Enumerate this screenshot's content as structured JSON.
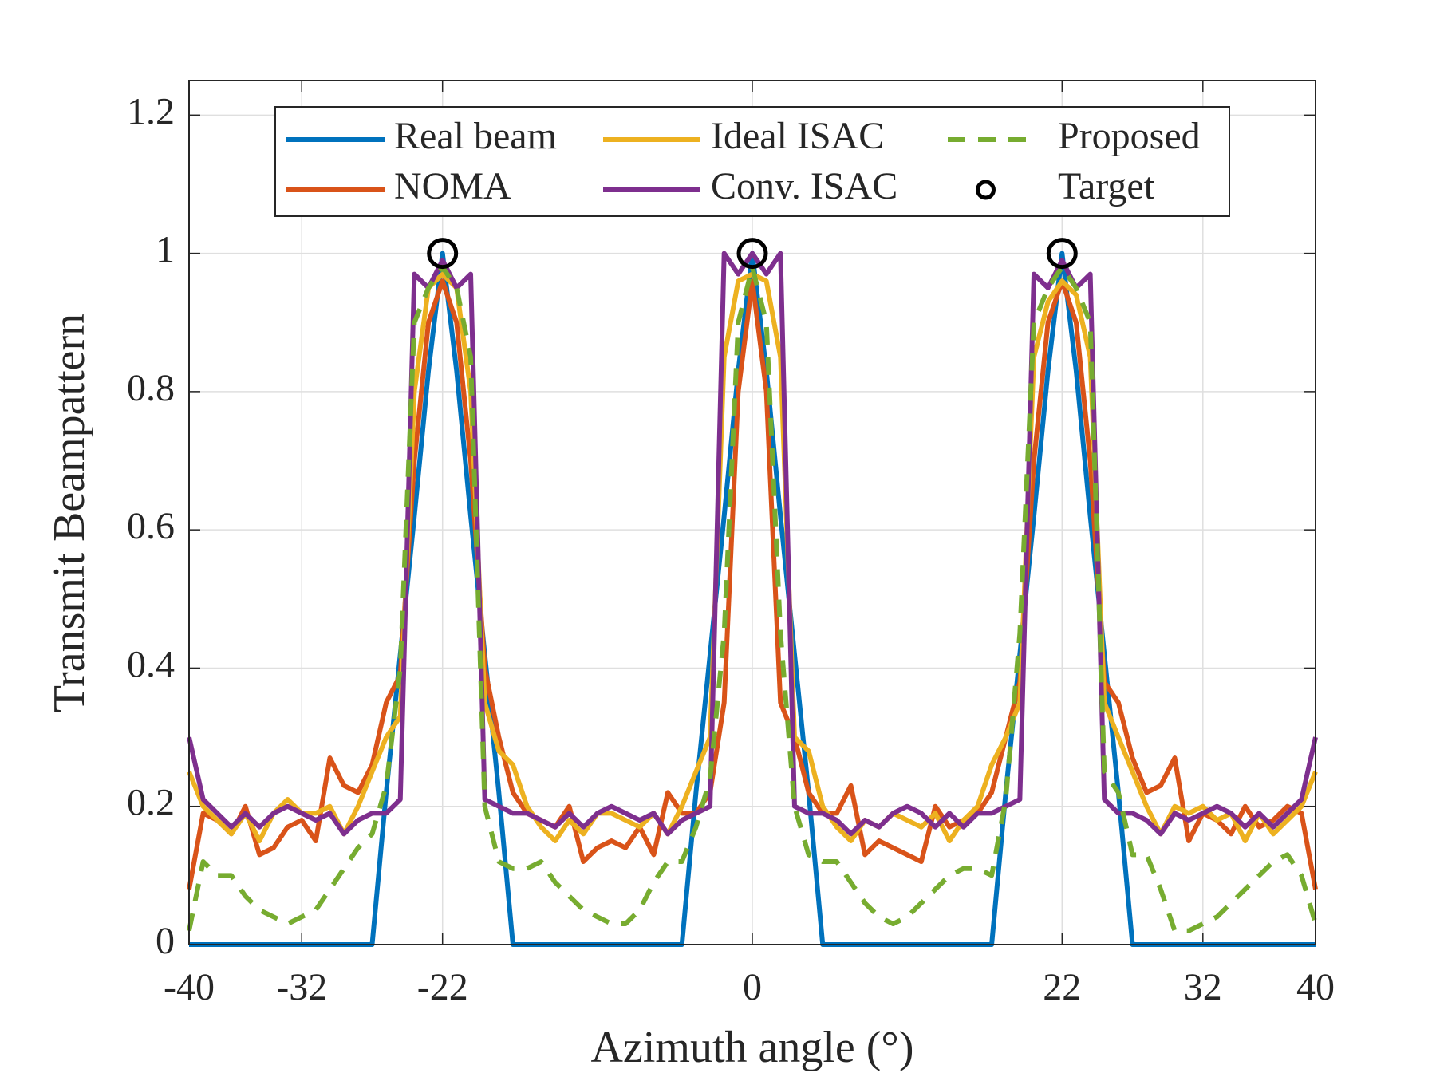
{
  "chart_data": {
    "type": "line",
    "xlabel": "Azimuth angle (°)",
    "ylabel": "Transmit Beampattern",
    "x": [
      -40,
      -39,
      -38,
      -37,
      -36,
      -35,
      -34,
      -33,
      -32,
      -31,
      -30,
      -29,
      -28,
      -27,
      -26,
      -25,
      -24,
      -23,
      -22,
      -21,
      -20,
      -19,
      -18,
      -17,
      -16,
      -15,
      -14,
      -13,
      -12,
      -11,
      -10,
      -9,
      -8,
      -7,
      -6,
      -5,
      -4,
      -3,
      -2,
      -1,
      0,
      1,
      2,
      3,
      4,
      5,
      6,
      7,
      8,
      9,
      10,
      11,
      12,
      13,
      14,
      15,
      16,
      17,
      18,
      19,
      20,
      21,
      22,
      23,
      24,
      25,
      26,
      27,
      28,
      29,
      30,
      31,
      32,
      33,
      34,
      35,
      36,
      37,
      38,
      39,
      40
    ],
    "series": [
      {
        "name": "Real beam",
        "color": "#0072BD",
        "line_style": "solid",
        "values": [
          0,
          0,
          0,
          0,
          0,
          0,
          0,
          0,
          0,
          0,
          0,
          0,
          0,
          0,
          0.22,
          0.42,
          0.62,
          0.83,
          1,
          0.83,
          0.62,
          0.42,
          0.22,
          0,
          0,
          0,
          0,
          0,
          0,
          0,
          0,
          0,
          0,
          0,
          0,
          0,
          0.22,
          0.42,
          0.62,
          0.83,
          1,
          0.83,
          0.62,
          0.42,
          0.22,
          0,
          0,
          0,
          0,
          0,
          0,
          0,
          0,
          0,
          0,
          0,
          0,
          0,
          0.22,
          0.42,
          0.62,
          0.83,
          1,
          0.83,
          0.62,
          0.42,
          0.22,
          0,
          0,
          0,
          0,
          0,
          0,
          0,
          0,
          0,
          0,
          0,
          0,
          0,
          0
        ]
      },
      {
        "name": "NOMA",
        "color": "#D95319",
        "line_style": "solid",
        "values": [
          0.08,
          0.19,
          0.18,
          0.16,
          0.2,
          0.13,
          0.14,
          0.17,
          0.18,
          0.15,
          0.27,
          0.23,
          0.22,
          0.26,
          0.35,
          0.39,
          0.7,
          0.9,
          0.96,
          0.9,
          0.7,
          0.4,
          0.3,
          0.22,
          0.19,
          0.18,
          0.17,
          0.2,
          0.12,
          0.14,
          0.15,
          0.14,
          0.17,
          0.13,
          0.22,
          0.19,
          0.19,
          0.22,
          0.35,
          0.8,
          0.96,
          0.8,
          0.35,
          0.3,
          0.22,
          0.19,
          0.19,
          0.23,
          0.13,
          0.15,
          0.14,
          0.13,
          0.12,
          0.2,
          0.17,
          0.18,
          0.19,
          0.22,
          0.3,
          0.38,
          0.7,
          0.9,
          0.96,
          0.9,
          0.7,
          0.38,
          0.35,
          0.27,
          0.22,
          0.23,
          0.27,
          0.15,
          0.19,
          0.18,
          0.16,
          0.2,
          0.17,
          0.18,
          0.2,
          0.19,
          0.08
        ]
      },
      {
        "name": "Ideal ISAC",
        "color": "#EDB120",
        "line_style": "solid",
        "values": [
          0.25,
          0.2,
          0.18,
          0.16,
          0.19,
          0.15,
          0.19,
          0.21,
          0.19,
          0.19,
          0.2,
          0.16,
          0.2,
          0.25,
          0.3,
          0.33,
          0.8,
          0.95,
          0.97,
          0.95,
          0.8,
          0.35,
          0.28,
          0.26,
          0.2,
          0.17,
          0.15,
          0.18,
          0.16,
          0.19,
          0.19,
          0.18,
          0.17,
          0.19,
          0.16,
          0.2,
          0.25,
          0.3,
          0.85,
          0.96,
          0.97,
          0.96,
          0.85,
          0.3,
          0.28,
          0.2,
          0.17,
          0.15,
          0.18,
          0.17,
          0.19,
          0.18,
          0.17,
          0.19,
          0.15,
          0.18,
          0.2,
          0.26,
          0.3,
          0.35,
          0.85,
          0.93,
          0.96,
          0.94,
          0.85,
          0.35,
          0.3,
          0.25,
          0.2,
          0.16,
          0.2,
          0.19,
          0.2,
          0.18,
          0.19,
          0.15,
          0.19,
          0.16,
          0.18,
          0.2,
          0.25
        ]
      },
      {
        "name": "Conv. ISAC",
        "color": "#7E2F8E",
        "line_style": "solid",
        "values": [
          0.3,
          0.21,
          0.19,
          0.17,
          0.19,
          0.17,
          0.19,
          0.2,
          0.19,
          0.18,
          0.19,
          0.16,
          0.18,
          0.19,
          0.19,
          0.21,
          0.97,
          0.95,
          0.99,
          0.95,
          0.97,
          0.21,
          0.2,
          0.19,
          0.19,
          0.18,
          0.17,
          0.19,
          0.17,
          0.19,
          0.2,
          0.19,
          0.18,
          0.19,
          0.16,
          0.18,
          0.19,
          0.2,
          1.0,
          0.97,
          1.0,
          0.97,
          1.0,
          0.2,
          0.19,
          0.19,
          0.18,
          0.16,
          0.18,
          0.17,
          0.19,
          0.2,
          0.19,
          0.17,
          0.19,
          0.17,
          0.19,
          0.19,
          0.2,
          0.21,
          0.97,
          0.95,
          0.99,
          0.95,
          0.97,
          0.21,
          0.19,
          0.19,
          0.18,
          0.16,
          0.19,
          0.18,
          0.19,
          0.2,
          0.19,
          0.17,
          0.19,
          0.17,
          0.19,
          0.21,
          0.3
        ]
      },
      {
        "name": "Proposed",
        "color": "#77AC30",
        "line_style": "dashed",
        "values": [
          0.02,
          0.12,
          0.1,
          0.1,
          0.07,
          0.05,
          0.04,
          0.03,
          0.04,
          0.05,
          0.08,
          0.11,
          0.14,
          0.16,
          0.23,
          0.4,
          0.9,
          0.95,
          0.98,
          0.95,
          0.85,
          0.2,
          0.12,
          0.11,
          0.11,
          0.12,
          0.09,
          0.07,
          0.05,
          0.04,
          0.03,
          0.03,
          0.05,
          0.09,
          0.12,
          0.12,
          0.17,
          0.24,
          0.45,
          0.9,
          0.98,
          0.9,
          0.45,
          0.2,
          0.13,
          0.12,
          0.12,
          0.09,
          0.06,
          0.04,
          0.03,
          0.04,
          0.06,
          0.08,
          0.1,
          0.11,
          0.11,
          0.1,
          0.21,
          0.45,
          0.9,
          0.95,
          0.98,
          0.95,
          0.9,
          0.25,
          0.22,
          0.13,
          0.13,
          0.08,
          0.02,
          0.02,
          0.03,
          0.04,
          0.06,
          0.08,
          0.1,
          0.12,
          0.13,
          0.1,
          0.03
        ]
      },
      {
        "name": "Target",
        "color": "#000000",
        "line_style": "none",
        "marker": "circle",
        "x": [
          -22,
          0,
          22
        ],
        "values": [
          1,
          1,
          1
        ]
      }
    ],
    "xlim": [
      -40,
      40
    ],
    "xticks": [
      -40,
      -32,
      -22,
      0,
      22,
      32,
      40
    ],
    "ylim": [
      0,
      1.25
    ],
    "yticks": [
      0,
      0.2,
      0.4,
      0.6,
      0.8,
      1,
      1.2
    ],
    "grid": true,
    "legend": "top",
    "legend_columns": 3
  }
}
